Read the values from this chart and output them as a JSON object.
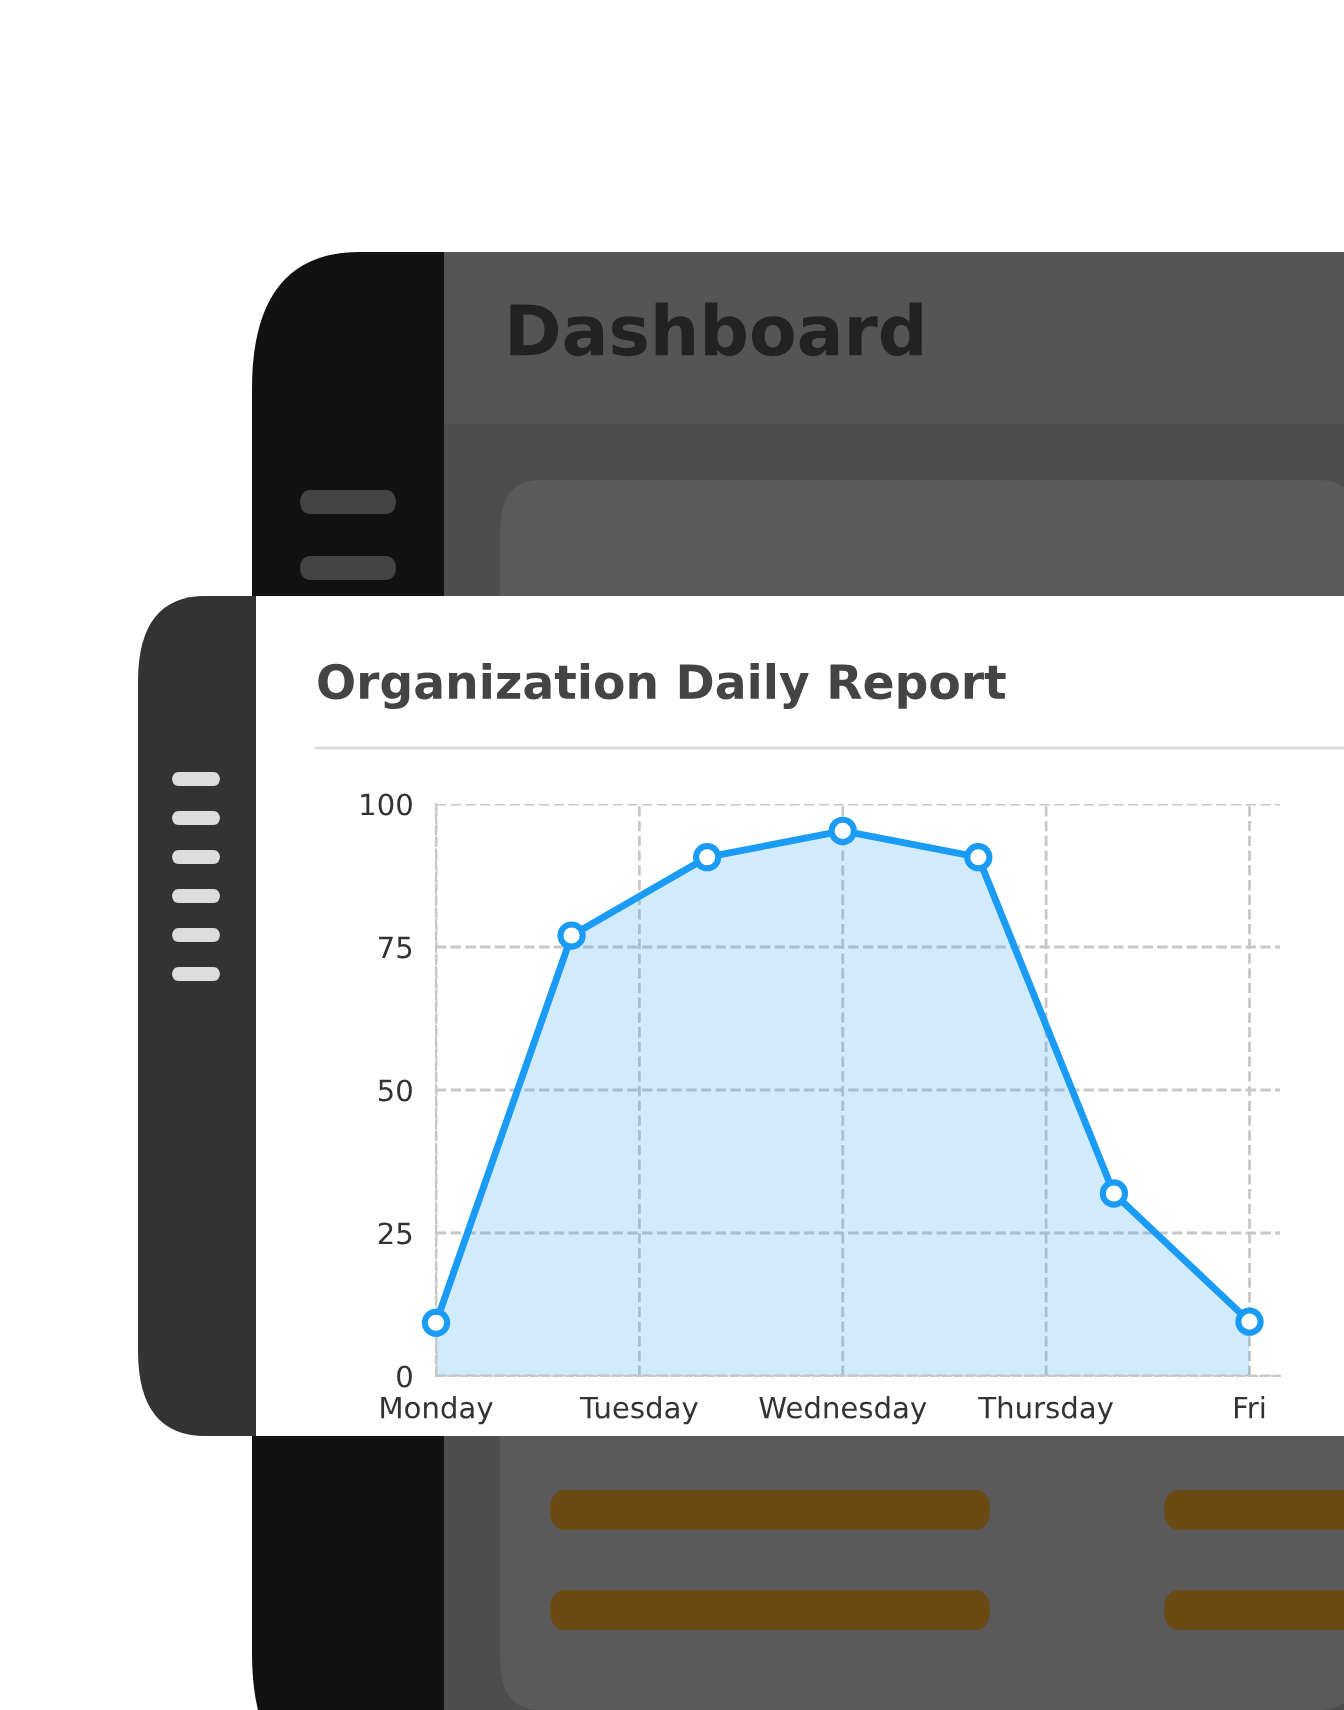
{
  "chart_data": {
    "type": "area",
    "title": "Organization Daily Report",
    "annotations": [
      "Dashboard",
      "Monday",
      "Tuesday",
      "Wednesday",
      "Thursday",
      "Fri"
    ],
    "categories": [
      null,
      null,
      null,
      null,
      null,
      null,
      null
    ],
    "series": [
      {
        "color": "#1a9bf5",
        "values": [
          9.3,
          77,
          90.7,
          95.3,
          90.7,
          31.9,
          9.5
        ]
      }
    ],
    "ylim": [
      0,
      100
    ],
    "yticks": [
      0,
      25,
      50,
      75,
      100
    ],
    "grid": true,
    "marker": "circle",
    "line_style": "solid"
  }
}
